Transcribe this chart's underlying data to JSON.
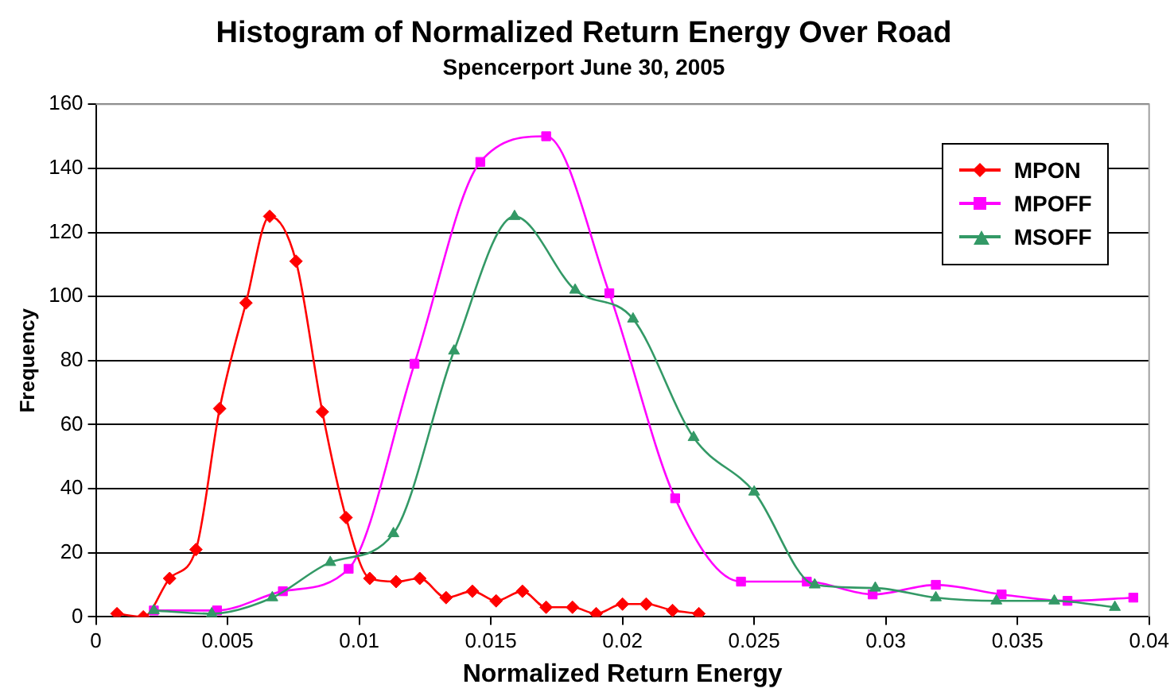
{
  "chart_data": {
    "type": "line",
    "title": "Histogram of Normalized Return Energy Over Road",
    "subtitle": "Spencerport June 30, 2005",
    "xlabel": "Normalized Return Energy",
    "ylabel": "Frequency",
    "xlim": [
      0,
      0.04
    ],
    "xticks": [
      0,
      0.005,
      0.01,
      0.015,
      0.02,
      0.025,
      0.03,
      0.035,
      0.04
    ],
    "ylim": [
      0,
      160
    ],
    "yticks": [
      0,
      20,
      40,
      60,
      80,
      100,
      120,
      140,
      160
    ],
    "grid": "y",
    "legend": "top right",
    "series": [
      {
        "name": "MPON",
        "color": "#ff0000",
        "marker": "diamond",
        "x": [
          0.0008,
          0.0018,
          0.0028,
          0.0038,
          0.0047,
          0.0057,
          0.0066,
          0.0076,
          0.0086,
          0.0095,
          0.0104,
          0.0114,
          0.0123,
          0.0133,
          0.0143,
          0.0152,
          0.0162,
          0.0171,
          0.0181,
          0.019,
          0.02,
          0.0209,
          0.0219,
          0.0229
        ],
        "values": [
          1,
          0,
          12,
          21,
          65,
          98,
          125,
          111,
          64,
          31,
          12,
          11,
          12,
          6,
          8,
          5,
          8,
          3,
          3,
          1,
          4,
          4,
          2,
          1
        ]
      },
      {
        "name": "MPOFF",
        "color": "#ff00ff",
        "marker": "square",
        "x": [
          0.0022,
          0.0046,
          0.0071,
          0.0096,
          0.0121,
          0.0146,
          0.0171,
          0.0195,
          0.022,
          0.0245,
          0.027,
          0.0295,
          0.0319,
          0.0344,
          0.0369,
          0.0394
        ],
        "values": [
          2,
          2,
          8,
          15,
          79,
          142,
          150,
          101,
          37,
          11,
          11,
          7,
          10,
          7,
          5,
          6
        ]
      },
      {
        "name": "MSOFF",
        "color": "#339966",
        "marker": "triangle",
        "x": [
          0.0022,
          0.0044,
          0.0067,
          0.0089,
          0.0113,
          0.0136,
          0.0159,
          0.0182,
          0.0204,
          0.0227,
          0.025,
          0.0273,
          0.0296,
          0.0319,
          0.0342,
          0.0364,
          0.0387
        ],
        "values": [
          2,
          1,
          6,
          17,
          26,
          83,
          125,
          102,
          93,
          56,
          39,
          10,
          9,
          6,
          5,
          5,
          3
        ]
      }
    ]
  }
}
